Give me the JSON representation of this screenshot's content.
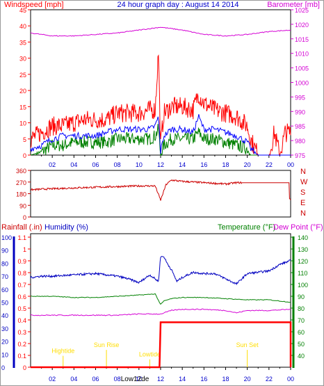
{
  "colors": {
    "wind": "#ff0000",
    "gust": "#ff0000",
    "avg_wind": "#0000ff",
    "min_wind": "#008000",
    "barometer": "#d400d4",
    "direction": "#cc0000",
    "rain": "#ff0000",
    "humidity": "#0000c0",
    "temperature": "#008000",
    "dewpoint": "#d400d4",
    "event": "#ffdd00",
    "grid": "#000000"
  },
  "chart_data": [
    {
      "type": "line",
      "id": "wind",
      "title": "24 hour graph day : August 14 2014",
      "ylabel_left": "Windspeed [mph]",
      "ylabel_right": "Barometer [mb]",
      "x_tick_labels": [
        "02",
        "04",
        "06",
        "08",
        "10",
        "12",
        "14",
        "16",
        "18",
        "20",
        "22",
        "00"
      ],
      "ylim_left": [
        0,
        45
      ],
      "yticks_left": [
        "0",
        "5",
        "10",
        "15",
        "20",
        "25",
        "30",
        "35",
        "40",
        "45"
      ],
      "ylim_right": [
        975,
        1025
      ],
      "yticks_right": [
        "975",
        "980",
        "985",
        "990",
        "995",
        "1000",
        "1005",
        "1010",
        "1015",
        "1020",
        "1025"
      ],
      "x_hours": [
        0,
        1,
        2,
        3,
        4,
        5,
        6,
        7,
        8,
        9,
        10,
        11,
        11.5,
        11.8,
        12,
        12.3,
        13,
        14,
        15,
        15.5,
        16,
        17,
        18,
        19,
        20,
        20.3,
        21,
        22,
        22.5,
        23,
        23.5
      ],
      "gust": [
        5,
        7,
        9,
        9,
        10,
        11,
        11,
        11,
        13,
        13,
        13,
        14,
        14,
        32,
        3,
        13,
        15,
        15,
        14,
        19,
        16,
        14,
        13,
        12,
        9,
        5,
        0,
        0,
        7,
        0,
        7
      ],
      "average": [
        2,
        3,
        5,
        6,
        6,
        6,
        6,
        7,
        8,
        8,
        8,
        8,
        9,
        12,
        1,
        6,
        8,
        8,
        7,
        12,
        8,
        8,
        7,
        6,
        4,
        2,
        0,
        0,
        0,
        0,
        0
      ],
      "minimum": [
        0,
        1,
        3,
        3,
        4,
        4,
        4,
        4,
        5,
        5,
        5,
        5,
        6,
        8,
        0,
        3,
        5,
        5,
        5,
        7,
        5,
        5,
        4,
        3,
        2,
        0,
        0,
        0,
        0,
        0,
        0
      ],
      "barometer_hours": [
        0,
        2,
        4,
        6,
        8,
        10,
        12,
        14,
        16,
        18,
        20,
        22,
        24
      ],
      "barometer": [
        1017,
        1016,
        1016,
        1016.5,
        1017,
        1018,
        1019,
        1018,
        1016.5,
        1016,
        1016.5,
        1017.5,
        1018
      ]
    },
    {
      "type": "line",
      "id": "direction",
      "ylim": [
        0,
        360
      ],
      "yticks": [
        "0",
        "90",
        "180",
        "270",
        "360"
      ],
      "compass": [
        "N",
        "W",
        "S",
        "E",
        "N"
      ],
      "x_hours": [
        0,
        1,
        2,
        4,
        6,
        8,
        10,
        11.5,
        12,
        12.5,
        13,
        14,
        16,
        18,
        19,
        20,
        23,
        24
      ],
      "values": [
        210,
        215,
        218,
        225,
        230,
        235,
        240,
        240,
        130,
        250,
        285,
        275,
        265,
        255,
        265,
        265,
        265,
        130
      ]
    },
    {
      "type": "line",
      "id": "temp",
      "ylabel_rain": "Rainfall (.in)",
      "ylabel_humidity": "Humidity (%)",
      "ylabel_temp": "Temperature (°F)",
      "ylabel_dew": "Dew Point (°F)",
      "rain_ylim": [
        0,
        1.1
      ],
      "rain_ticks": [
        "0",
        "0.1",
        "0.2",
        "0.3",
        "0.4",
        "0.5",
        "0.6",
        "0.7",
        "0.8",
        "0.9",
        "1",
        "1.1"
      ],
      "humidity_ylim": [
        0,
        100
      ],
      "humidity_ticks": [
        "0",
        "10",
        "20",
        "30",
        "40",
        "50",
        "60",
        "70",
        "80",
        "90",
        "100"
      ],
      "temp_ylim": [
        30,
        140
      ],
      "temp_ticks": [
        "40",
        "50",
        "60",
        "70",
        "80",
        "90",
        "100",
        "110",
        "120",
        "130",
        "140"
      ],
      "humidity_hours": [
        0,
        1,
        2,
        4,
        6,
        8,
        9,
        10,
        11,
        11.8,
        12,
        12.3,
        12.6,
        13,
        13.5,
        14,
        15,
        16,
        17,
        18,
        19,
        20,
        21,
        22,
        23,
        24
      ],
      "humidity": [
        69,
        70,
        70,
        71,
        72,
        70,
        68,
        65,
        71,
        66,
        85,
        85,
        80,
        75,
        66,
        69,
        73,
        72,
        72,
        68,
        64,
        72,
        73,
        74,
        79,
        82
      ],
      "temp_hours": [
        0,
        2,
        4,
        6,
        8,
        10,
        11.5,
        12,
        12.3,
        13,
        14,
        16,
        18,
        20,
        22,
        24
      ],
      "temperature": [
        90,
        90,
        89,
        89,
        90,
        91,
        92,
        83,
        86,
        88,
        89,
        89,
        88,
        87,
        87,
        85
      ],
      "dewpoint_hours": [
        0,
        2,
        4,
        6,
        8,
        10,
        11.5,
        12,
        13,
        14,
        16,
        18,
        19,
        20,
        22,
        24
      ],
      "dewpoint": [
        74,
        74,
        74,
        74,
        74,
        75,
        75,
        75,
        78,
        79,
        79,
        78,
        76,
        78,
        78,
        79
      ],
      "rain_hours": [
        0,
        11.9,
        12,
        24
      ],
      "rain": [
        0,
        0,
        0.38,
        0.38
      ],
      "events": [
        {
          "label": "Hightide",
          "hour": 3,
          "value": 0.12
        },
        {
          "label": "Sun Rise",
          "hour": 7,
          "value": 0.17
        },
        {
          "label": "Lowtide",
          "hour": 11,
          "value": 0.09
        },
        {
          "label": "Sun Set",
          "hour": 20,
          "value": 0.17
        }
      ],
      "bottom_label": "Low12de"
    }
  ]
}
